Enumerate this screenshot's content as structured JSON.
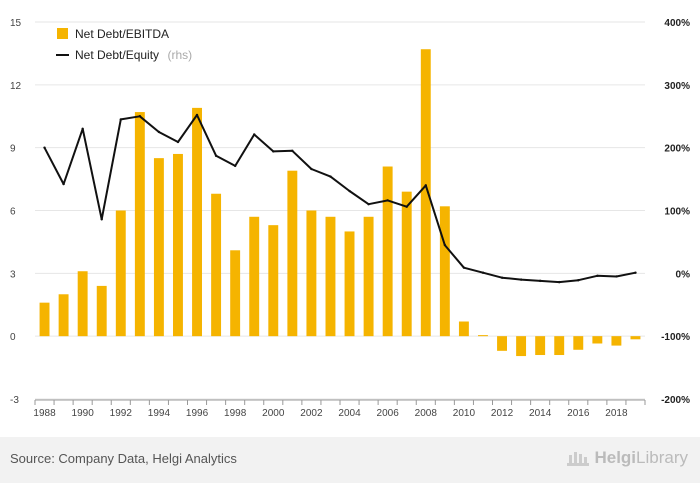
{
  "chart_data": {
    "type": "bar+line",
    "title": "",
    "x": [
      "1988",
      "1989",
      "1990",
      "1991",
      "1992",
      "1993",
      "1994",
      "1995",
      "1996",
      "1997",
      "1998",
      "1999",
      "2000",
      "2001",
      "2002",
      "2003",
      "2004",
      "2005",
      "2006",
      "2007",
      "2008",
      "2009",
      "2010",
      "2011",
      "2012",
      "2013",
      "2014",
      "2015",
      "2016",
      "2017",
      "2018",
      "2019"
    ],
    "x_tick_labels": [
      "1988",
      "1990",
      "1992",
      "1994",
      "1996",
      "1998",
      "2000",
      "2002",
      "2004",
      "2006",
      "2008",
      "2010",
      "2012",
      "2014",
      "2016",
      "2018"
    ],
    "left_axis": {
      "ylim": [
        -3,
        15
      ],
      "ticks": [
        "-3",
        "0",
        "3",
        "6",
        "9",
        "12",
        "15"
      ],
      "tick_values": [
        -3,
        0,
        3,
        6,
        9,
        12,
        15
      ]
    },
    "right_axis": {
      "ylim": [
        -200,
        400
      ],
      "ticks": [
        "-200%",
        "-100%",
        "0%",
        "100%",
        "200%",
        "300%",
        "400%"
      ],
      "tick_values": [
        -200,
        -100,
        0,
        100,
        200,
        300,
        400
      ]
    },
    "series": [
      {
        "name": "Net Debt/EBITDA",
        "type": "bar",
        "axis": "left",
        "color": "#f5b400",
        "values": [
          1.6,
          2.0,
          3.1,
          2.4,
          6.0,
          10.7,
          8.5,
          8.7,
          10.9,
          6.8,
          4.1,
          5.7,
          5.3,
          7.9,
          6.0,
          5.7,
          5.0,
          5.7,
          8.1,
          6.9,
          13.7,
          6.2,
          0.7,
          0.05,
          -0.7,
          -0.95,
          -0.9,
          -0.9,
          -0.65,
          -0.35,
          -0.45,
          -0.15
        ]
      },
      {
        "name": "Net Debt/Equity",
        "name_suffix": "(rhs)",
        "type": "line",
        "axis": "right",
        "color": "#111111",
        "values": [
          200,
          142,
          230,
          86,
          245,
          250,
          225,
          209,
          252,
          187,
          171,
          221,
          194,
          195,
          166,
          154,
          131,
          110,
          116,
          106,
          140,
          45,
          9,
          1,
          -7,
          -10,
          -12,
          -14,
          -11,
          -4,
          -5,
          1
        ]
      }
    ],
    "legend_position": "top-left",
    "grid": "horizontal"
  },
  "footer": {
    "source": "Source: Company Data, Helgi Analytics",
    "brand": "HelgiLibrary",
    "brand_part1": "Helgi",
    "brand_part2": "Library"
  }
}
